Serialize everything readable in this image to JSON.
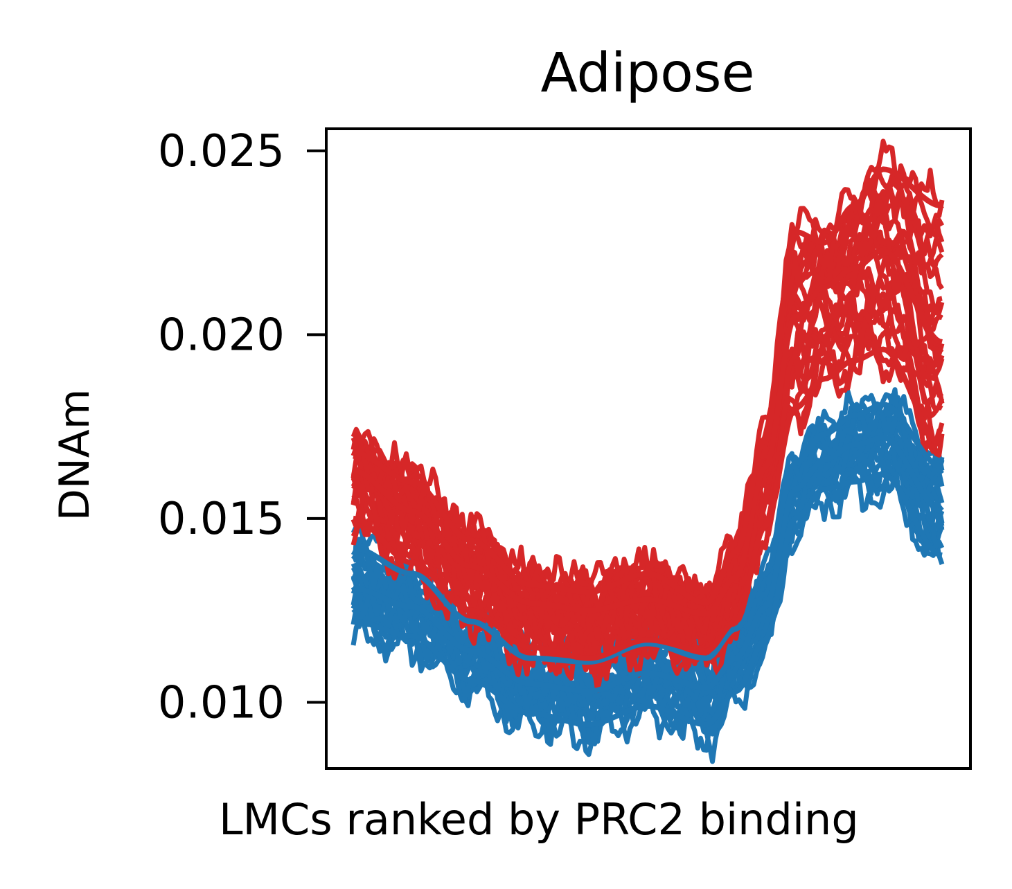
{
  "chart_data": {
    "type": "line",
    "title": "Adipose",
    "xlabel": "LMCs ranked by PRC2 binding",
    "ylabel": "DNAm",
    "ylim": [
      0.0082,
      0.0256
    ],
    "yticks": [
      "0.010",
      "0.015",
      "0.020",
      "0.025"
    ],
    "ytick_values": [
      0.01,
      0.015,
      0.02,
      0.025
    ],
    "grid": false,
    "legend": "none",
    "x": [
      0,
      10,
      20,
      30,
      40,
      50,
      60,
      65,
      70,
      75,
      80,
      85,
      90,
      100
    ],
    "series": [
      {
        "color": "#1f77b4",
        "values": [
          0.0122,
          0.0118,
          0.0106,
          0.0097,
          0.0094,
          0.0099,
          0.0094,
          0.0103,
          0.0117,
          0.015,
          0.0158,
          0.016,
          0.0162,
          0.014
        ]
      },
      {
        "color": "#1f77b4",
        "values": [
          0.0131,
          0.0126,
          0.0114,
          0.0105,
          0.0103,
          0.0108,
          0.0104,
          0.0112,
          0.0126,
          0.0158,
          0.0166,
          0.017,
          0.0172,
          0.0152
        ]
      },
      {
        "color": "#1f77b4",
        "values": [
          0.0142,
          0.0135,
          0.0122,
          0.0112,
          0.0111,
          0.0116,
          0.0112,
          0.012,
          0.0135,
          0.0165,
          0.0173,
          0.0178,
          0.0181,
          0.0164
        ]
      },
      {
        "color": "#d62728",
        "values": [
          0.015,
          0.0138,
          0.0125,
          0.0115,
          0.0112,
          0.0117,
          0.0114,
          0.0122,
          0.0148,
          0.018,
          0.0188,
          0.0193,
          0.0196,
          0.017
        ]
      },
      {
        "color": "#d62728",
        "values": [
          0.0163,
          0.0152,
          0.0137,
          0.0127,
          0.0125,
          0.0128,
          0.0124,
          0.0134,
          0.0164,
          0.0205,
          0.0213,
          0.0218,
          0.0223,
          0.0198
        ]
      },
      {
        "color": "#d62728",
        "values": [
          0.0168,
          0.016,
          0.0144,
          0.0132,
          0.013,
          0.0135,
          0.0127,
          0.0141,
          0.0172,
          0.0228,
          0.0225,
          0.0235,
          0.0245,
          0.0235
        ]
      }
    ],
    "band_colors": {
      "blue": "#1f77b4",
      "red": "#d62728"
    }
  }
}
